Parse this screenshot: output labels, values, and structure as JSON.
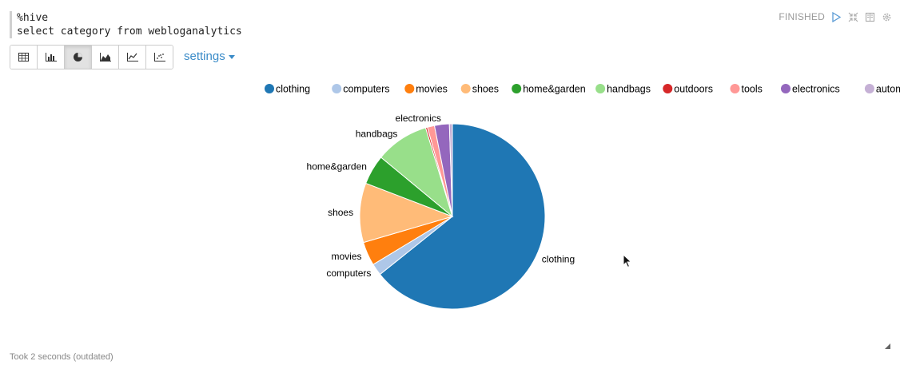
{
  "paragraph": {
    "code_lines": [
      "%hive",
      "select category from webloganalytics"
    ],
    "status": "FINISHED",
    "footer": "Took 2 seconds (outdated)"
  },
  "toolbar": {
    "buttons": [
      {
        "icon": "table-icon",
        "active": false
      },
      {
        "icon": "bar-chart-icon",
        "active": false
      },
      {
        "icon": "pie-chart-icon",
        "active": true
      },
      {
        "icon": "area-chart-icon",
        "active": false
      },
      {
        "icon": "line-chart-icon",
        "active": false
      },
      {
        "icon": "scatter-chart-icon",
        "active": false
      }
    ],
    "settings_label": "settings"
  },
  "chart_data": {
    "type": "pie",
    "categories": [
      "clothing",
      "computers",
      "movies",
      "shoes",
      "home&garden",
      "handbags",
      "outdoors",
      "tools",
      "electronics",
      "automotive"
    ],
    "values": [
      62,
      2,
      4,
      10,
      5,
      9,
      0.3,
      1.2,
      2.5,
      0.5
    ],
    "colors": [
      "#1f77b4",
      "#aec7e8",
      "#ff7f0e",
      "#ffbb78",
      "#2ca02c",
      "#98df8a",
      "#d62728",
      "#ff9896",
      "#9467bd",
      "#c5b0d5"
    ],
    "legend_position": "top",
    "slice_labels": [
      "clothing",
      "computers",
      "movies",
      "shoes",
      "home&garden",
      "handbags",
      "",
      "",
      "electronics",
      ""
    ]
  }
}
